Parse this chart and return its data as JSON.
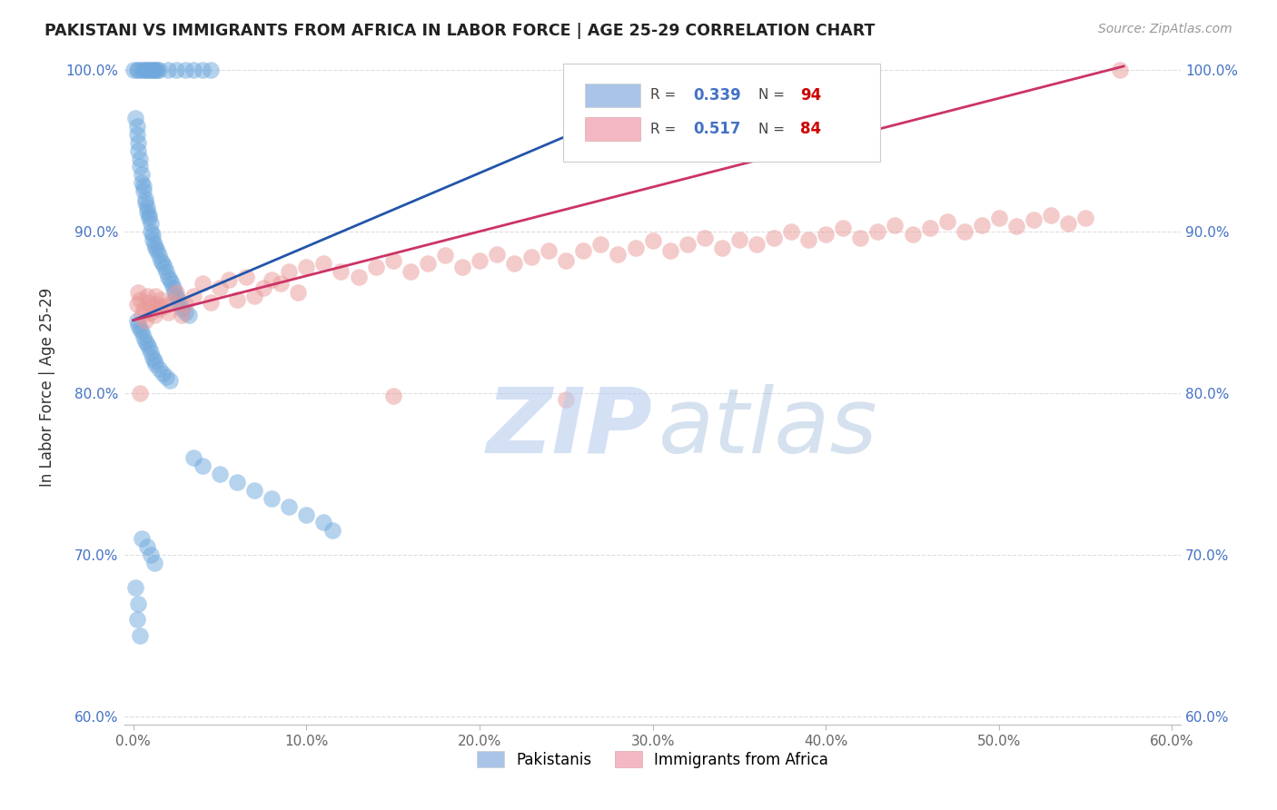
{
  "title": "PAKISTANI VS IMMIGRANTS FROM AFRICA IN LABOR FORCE | AGE 25-29 CORRELATION CHART",
  "source": "Source: ZipAtlas.com",
  "ylabel": "In Labor Force | Age 25-29",
  "xlim": [
    -0.005,
    0.605
  ],
  "ylim": [
    0.595,
    1.012
  ],
  "xticks": [
    0.0,
    0.1,
    0.2,
    0.3,
    0.4,
    0.5,
    0.6
  ],
  "yticks": [
    0.6,
    0.7,
    0.8,
    0.9,
    1.0
  ],
  "ytick_color": "#4472c4",
  "blue_color": "#6fa8dc",
  "pink_color": "#ea9999",
  "blue_line_color": "#2255aa",
  "pink_line_color": "#cc3366",
  "R_blue": 0.339,
  "N_blue": 94,
  "R_pink": 0.517,
  "N_pink": 84,
  "legend_label_blue": "Pakistanis",
  "legend_label_pink": "Immigrants from Africa",
  "blue_line_x0": 0.0,
  "blue_line_y0": 0.845,
  "blue_line_x1": 0.345,
  "blue_line_y1": 1.002,
  "pink_line_x0": 0.0,
  "pink_line_y0": 0.845,
  "pink_line_x1": 0.572,
  "pink_line_y1": 1.002
}
